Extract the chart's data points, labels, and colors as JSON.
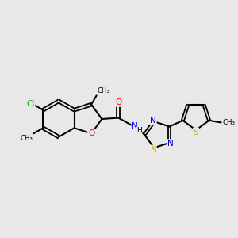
{
  "background_color": "#e8e8e8",
  "bond_color": "#000000",
  "atom_colors": {
    "Cl": "#00bb00",
    "O": "#ff0000",
    "N": "#0000ee",
    "S": "#ccaa00",
    "C": "#000000"
  },
  "figsize": [
    3.0,
    3.0
  ],
  "dpi": 100,
  "xlim": [
    0,
    10
  ],
  "ylim": [
    2,
    8
  ]
}
